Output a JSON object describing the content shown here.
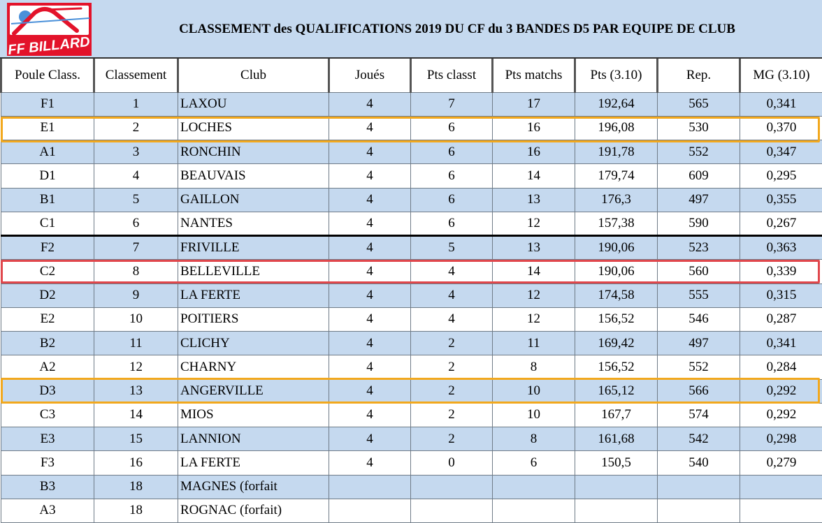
{
  "header": {
    "logo_text": "FF BILLARD",
    "title": "CLASSEMENT des QUALIFICATIONS 2019 DU CF du 3 BANDES D5 PAR EQUIPE DE CLUB"
  },
  "colors": {
    "row_blue": "#c5d9ef",
    "logo_red": "#e3132a",
    "highlight_orange": "#f2a81d",
    "highlight_red": "#e0474c"
  },
  "columns": [
    "Poule Class.",
    "Classement",
    "Club",
    "Joués",
    "Pts classt",
    "Pts matchs",
    "Pts (3.10)",
    "Rep.",
    "MG (3.10)"
  ],
  "rows": [
    [
      "F1",
      "1",
      "LAXOU",
      "4",
      "7",
      "17",
      "192,64",
      "565",
      "0,341"
    ],
    [
      "E1",
      "2",
      "LOCHES",
      "4",
      "6",
      "16",
      "196,08",
      "530",
      "0,370"
    ],
    [
      "A1",
      "3",
      "RONCHIN",
      "4",
      "6",
      "16",
      "191,78",
      "552",
      "0,347"
    ],
    [
      "D1",
      "4",
      "BEAUVAIS",
      "4",
      "6",
      "14",
      "179,74",
      "609",
      "0,295"
    ],
    [
      "B1",
      "5",
      "GAILLON",
      "4",
      "6",
      "13",
      "176,3",
      "497",
      "0,355"
    ],
    [
      "C1",
      "6",
      "NANTES",
      "4",
      "6",
      "12",
      "157,38",
      "590",
      "0,267"
    ],
    [
      "F2",
      "7",
      "FRIVILLE",
      "4",
      "5",
      "13",
      "190,06",
      "523",
      "0,363"
    ],
    [
      "C2",
      "8",
      "BELLEVILLE",
      "4",
      "4",
      "14",
      "190,06",
      "560",
      "0,339"
    ],
    [
      "D2",
      "9",
      "LA FERTE",
      "4",
      "4",
      "12",
      "174,58",
      "555",
      "0,315"
    ],
    [
      "E2",
      "10",
      "POITIERS",
      "4",
      "4",
      "12",
      "156,52",
      "546",
      "0,287"
    ],
    [
      "B2",
      "11",
      "CLICHY",
      "4",
      "2",
      "11",
      "169,42",
      "497",
      "0,341"
    ],
    [
      "A2",
      "12",
      "CHARNY",
      "4",
      "2",
      "8",
      "156,52",
      "552",
      "0,284"
    ],
    [
      "D3",
      "13",
      "ANGERVILLE",
      "4",
      "2",
      "10",
      "165,12",
      "566",
      "0,292"
    ],
    [
      "C3",
      "14",
      "MIOS",
      "4",
      "2",
      "10",
      "167,7",
      "574",
      "0,292"
    ],
    [
      "E3",
      "15",
      "LANNION",
      "4",
      "2",
      "8",
      "161,68",
      "542",
      "0,298"
    ],
    [
      "F3",
      "16",
      "LA FERTE",
      "4",
      "0",
      "6",
      "150,5",
      "540",
      "0,279"
    ],
    [
      "B3",
      "18",
      "MAGNES (forfait",
      "",
      "",
      "",
      "",
      "",
      ""
    ],
    [
      "A3",
      "18",
      "ROGNAC (forfait)",
      "",
      "",
      "",
      "",
      "",
      ""
    ]
  ]
}
